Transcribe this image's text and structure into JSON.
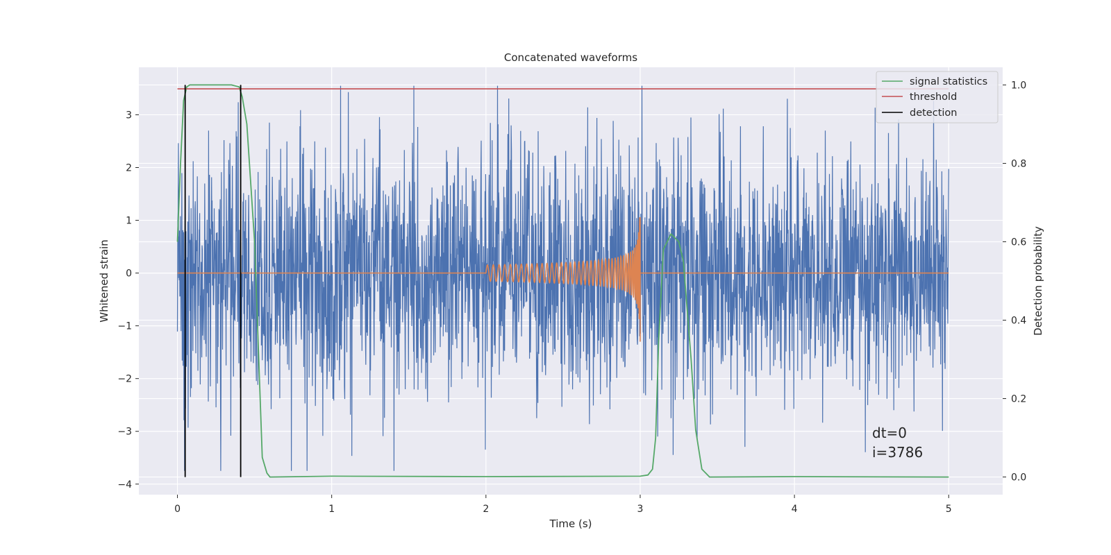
{
  "chart_data": {
    "type": "line",
    "title": "Concatenated waveforms",
    "xlabel": "Time (s)",
    "ylabel": "Whitened strain",
    "y2label": "Detection probability",
    "xlim": [
      -0.25,
      5.35
    ],
    "ylim": [
      -4.2,
      3.9
    ],
    "y2lim": [
      -0.045,
      1.045
    ],
    "grid": true,
    "legend_position": "top-right",
    "x_ticks": [
      0,
      1,
      2,
      3,
      4,
      5
    ],
    "x_tick_labels": [
      "0",
      "1",
      "2",
      "3",
      "4",
      "5"
    ],
    "y_ticks": [
      -4,
      -3,
      -2,
      -1,
      0,
      1,
      2,
      3
    ],
    "y_tick_labels": [
      "−4",
      "−3",
      "−2",
      "−1",
      "0",
      "1",
      "2",
      "3"
    ],
    "y2_ticks": [
      0.0,
      0.2,
      0.4,
      0.6,
      0.8,
      1.0
    ],
    "y2_tick_labels": [
      "0.0",
      "0.2",
      "0.4",
      "0.6",
      "0.8",
      "1.0"
    ],
    "strain_noise": {
      "color": "#4c72b0",
      "x_range": [
        0,
        5
      ],
      "typical_amplitude": 1.2,
      "max": 3.55,
      "min": -3.75
    },
    "injected_signal": {
      "color": "#dd8452",
      "start": 2.0,
      "end": 3.0,
      "max_amplitude": 1.1
    },
    "series": [
      {
        "name": "signal statistics",
        "axis": "right",
        "color": "#55a868",
        "x": [
          0,
          0.02,
          0.04,
          0.06,
          0.08,
          0.1,
          0.2,
          0.35,
          0.4,
          0.42,
          0.45,
          0.5,
          0.55,
          0.58,
          0.6,
          1.0,
          2.0,
          3.0,
          3.05,
          3.08,
          3.1,
          3.12,
          3.15,
          3.2,
          3.25,
          3.28,
          3.3,
          3.33,
          3.36,
          3.4,
          3.45,
          4.0,
          5.0
        ],
        "y": [
          0.6,
          0.8,
          0.96,
          0.995,
          1.0,
          1.0,
          1.0,
          1.0,
          0.995,
          0.97,
          0.9,
          0.6,
          0.05,
          0.01,
          0.0,
          0.002,
          0.001,
          0.002,
          0.005,
          0.02,
          0.1,
          0.35,
          0.58,
          0.62,
          0.6,
          0.55,
          0.45,
          0.3,
          0.12,
          0.02,
          0.0,
          0.001,
          0.0
        ]
      },
      {
        "name": "threshold",
        "axis": "right",
        "color": "#c44e52",
        "x": [
          0,
          5
        ],
        "y": [
          0.99,
          0.99
        ]
      },
      {
        "name": "detection",
        "axis": "right",
        "color": "#000000",
        "x": [
          0.05,
          0.41
        ],
        "y": [
          1.0,
          1.0
        ]
      }
    ],
    "annotations": [
      "dt=0",
      "i=3786"
    ]
  }
}
